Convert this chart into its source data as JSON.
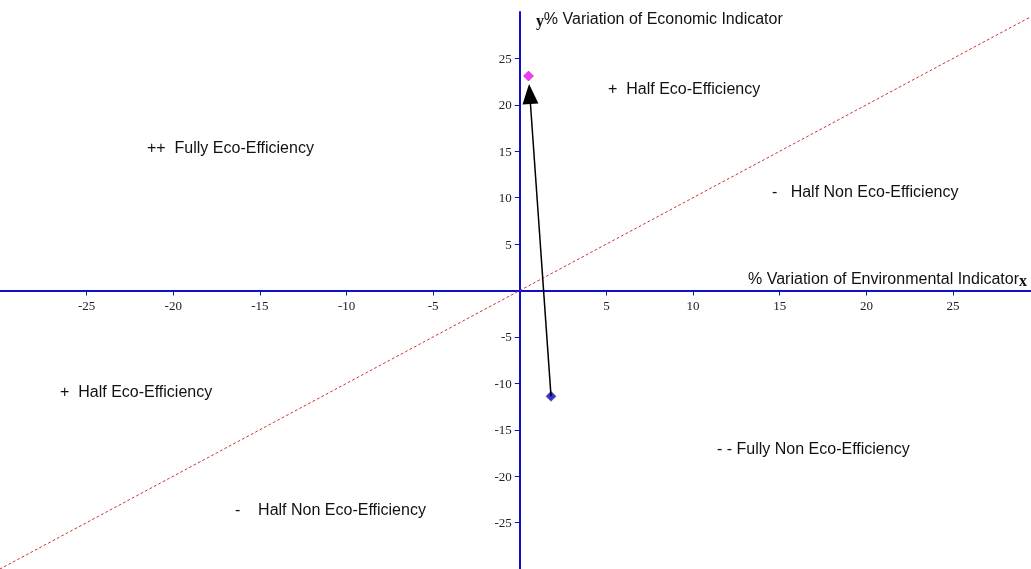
{
  "chart_data": {
    "type": "scatter",
    "xlabel": "% Variation of Environmental Indicator",
    "ylabel": "% Variation of Economic Indicator",
    "xlim": [
      -30,
      29.5
    ],
    "ylim": [
      -30,
      30
    ],
    "xticks": [
      -25,
      -20,
      -15,
      -10,
      -5,
      5,
      10,
      15,
      20,
      25
    ],
    "yticks": [
      -25,
      -20,
      -15,
      -10,
      -5,
      5,
      10,
      15,
      20,
      25
    ],
    "grid": false,
    "marker": "diamond",
    "series": [
      {
        "type": "line",
        "color": "#cc3333",
        "line_style": "dotted",
        "marker": "none",
        "x": [
          -30,
          29.5
        ],
        "values": [
          -30,
          29.5
        ]
      },
      {
        "color": "#ff00ff",
        "x": [
          0.5
        ],
        "values": [
          23.1
        ]
      },
      {
        "color": "#0000cc",
        "x": [
          1.8
        ],
        "values": [
          -11.4
        ]
      }
    ],
    "annotations": [
      "y",
      "x",
      "+  Half Eco-Efficiency",
      "++  Fully Eco-Efficiency",
      "-   Half Non Eco-Efficiency",
      "+  Half Eco-Efficiency",
      "- - Fully Non Eco-Efficiency",
      "-    Half Non Eco-Efficiency"
    ]
  }
}
